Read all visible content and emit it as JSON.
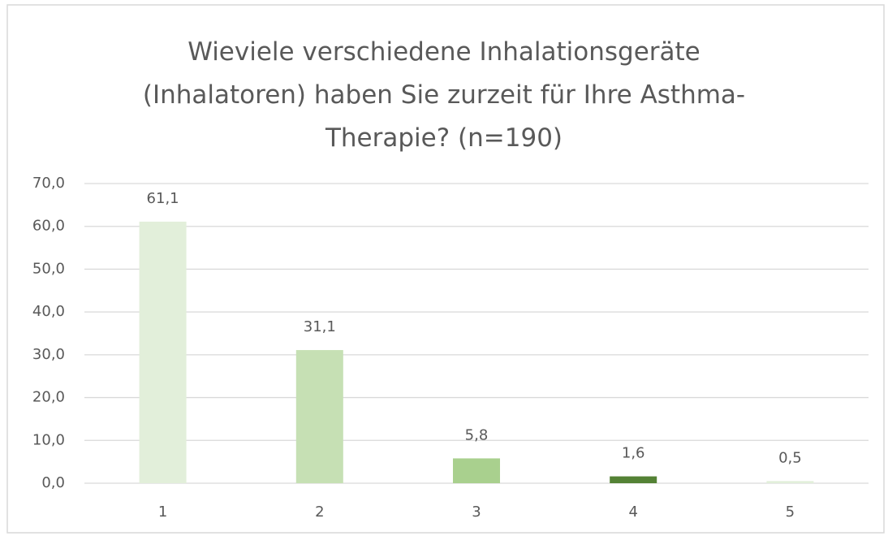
{
  "chart_data": {
    "type": "bar",
    "title": "Wieviele verschiedene Inhalationsgeräte (Inhalatoren) haben Sie zurzeit für Ihre Asthma-Therapie? (n=190)",
    "categories": [
      "1",
      "2",
      "3",
      "4",
      "5"
    ],
    "values": [
      61.1,
      31.1,
      5.8,
      1.6,
      0.5
    ],
    "value_labels": [
      "61,1",
      "31,1",
      "5,8",
      "1,6",
      "0,5"
    ],
    "colors": [
      "#e2efda",
      "#c6e0b4",
      "#a9d08e",
      "#548235",
      "#e2efda"
    ],
    "ylim": [
      0,
      70
    ],
    "yticks": [
      {
        "value": 0,
        "label": "0,0"
      },
      {
        "value": 10,
        "label": "10,0"
      },
      {
        "value": 20,
        "label": "20,0"
      },
      {
        "value": 30,
        "label": "30,0"
      },
      {
        "value": 40,
        "label": "40,0"
      },
      {
        "value": 50,
        "label": "50,0"
      },
      {
        "value": 60,
        "label": "60,0"
      },
      {
        "value": 70,
        "label": "70,0"
      }
    ],
    "grid": true
  }
}
